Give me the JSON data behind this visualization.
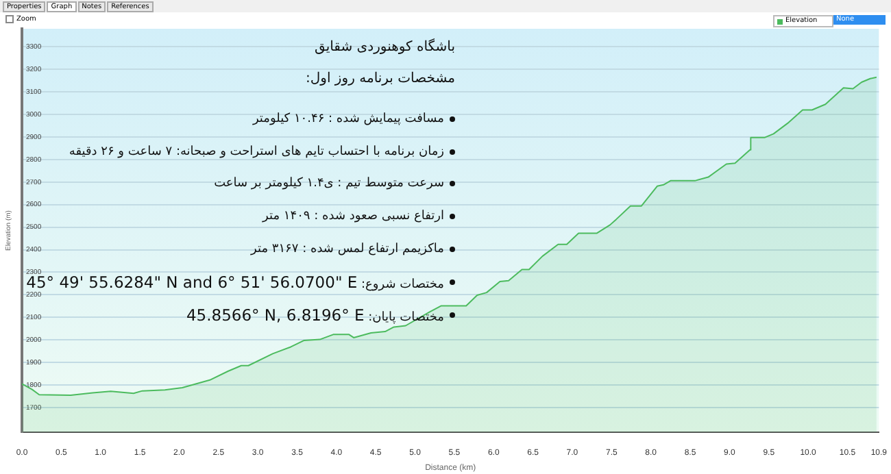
{
  "chart_data": {
    "type": "area",
    "title": "باشگاه کوهنوردی شقایق",
    "subtitle": "مشخصات برنامه روز اول:",
    "xlabel": "Distance (km)",
    "ylabel": "Elevation (m)",
    "annotations": [
      "Properties",
      "Graph",
      "Notes",
      "References",
      "Zoom",
      "None",
      "مسافت پیمایش شده : ۱۰.۴۶ کیلومتر",
      "زمان برنامه با احتساب تایم های استراحت و صبحانه: ۷ ساعت و ۲۶ دقیقه",
      "سرعت متوسط تیم : ی۱.۴ کیلومتر بر ساعت",
      "ارتفاع نسبی صعود شده : ۱۴۰۹ متر",
      "ماکزیمم ارتفاع لمس شده : ۳۱۶۷ متر",
      "مختصات شروع: 45° 49' 55.6284\" N and 6° 51' 56.0700\" E",
      "مختصات پایان: 45.8566° N, 6.8196° E"
    ],
    "x": [
      0,
      0.13,
      0.22,
      0.62,
      0.9,
      1.13,
      1.42,
      1.53,
      1.82,
      2.04,
      2.39,
      2.62,
      2.79,
      2.88,
      3.19,
      3.42,
      3.59,
      3.79,
      3.96,
      4.16,
      4.22,
      4.44,
      4.62,
      4.73,
      4.88,
      5.19,
      5.33,
      5.65,
      5.79,
      5.91,
      6.08,
      6.19,
      6.36,
      6.45,
      6.62,
      6.82,
      6.93,
      7.08,
      7.31,
      7.48,
      7.56,
      7.74,
      7.88,
      8.08,
      8.16,
      8.25,
      8.56,
      8.73,
      8.96,
      9.07,
      9.26,
      9.27,
      9.45,
      9.56,
      9.74,
      9.93,
      10.05,
      10.22,
      10.45,
      10.57,
      10.68,
      10.79,
      10.87
    ],
    "series": [
      {
        "name": "Elevation",
        "color": "#4cbb5e",
        "values": [
          1805,
          1780,
          1757,
          1755,
          1765,
          1772,
          1763,
          1774,
          1778,
          1788,
          1822,
          1861,
          1886,
          1886,
          1939,
          1969,
          1998,
          2002,
          2024,
          2024,
          2010,
          2031,
          2037,
          2057,
          2063,
          2125,
          2151,
          2151,
          2198,
          2210,
          2259,
          2263,
          2312,
          2312,
          2371,
          2424,
          2424,
          2473,
          2473,
          2510,
          2535,
          2594,
          2594,
          2682,
          2688,
          2706,
          2706,
          2722,
          2780,
          2784,
          2843,
          2898,
          2898,
          2914,
          2961,
          3020,
          3020,
          3045,
          3118,
          3114,
          3143,
          3159,
          3165
        ]
      }
    ],
    "xlim": [
      0,
      10.9
    ],
    "xticks": [
      {
        "value": 0,
        "label": "0.0"
      },
      0.5,
      {
        "value": 1,
        "label": "1.0"
      },
      1.5,
      {
        "value": 2,
        "label": "2.0"
      },
      2.5,
      {
        "value": 3,
        "label": "3.0"
      },
      3.5,
      {
        "value": 4,
        "label": "4.0"
      },
      4.5,
      {
        "value": 5,
        "label": "5.0"
      },
      5.5,
      {
        "value": 6,
        "label": "6.0"
      },
      6.5,
      {
        "value": 7,
        "label": "7.0"
      },
      7.5,
      {
        "value": 8,
        "label": "8.0"
      },
      8.5,
      {
        "value": 9,
        "label": "9.0"
      },
      9.5,
      {
        "value": 10,
        "label": "10.0"
      },
      10.5,
      10.9
    ],
    "ylim": [
      1590,
      3380
    ],
    "yticks": [
      1700,
      1800,
      1900,
      2000,
      2100,
      2200,
      2300,
      2400,
      2500,
      2600,
      2700,
      2800,
      2900,
      3000,
      3100,
      3200,
      3300
    ],
    "grid": "y",
    "legend": "top right",
    "marker": "none",
    "line_style": "solid"
  }
}
